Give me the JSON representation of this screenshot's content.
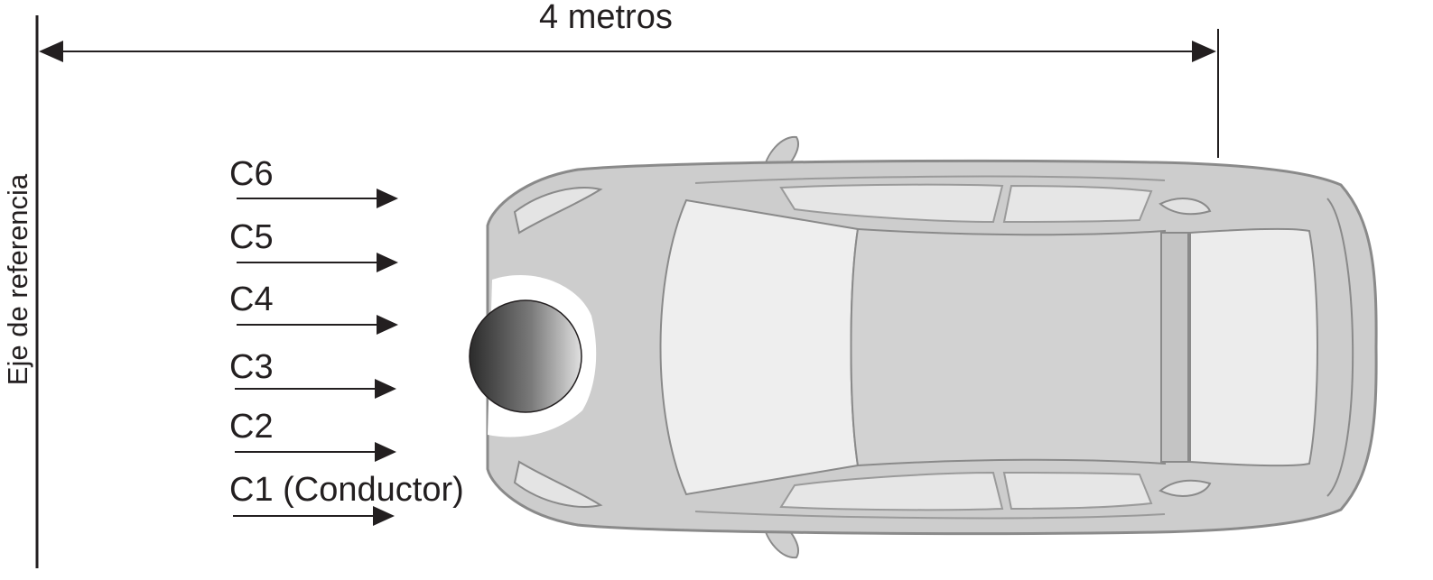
{
  "dimension": {
    "label": "4 metros"
  },
  "axis": {
    "label": "Eje de referencia"
  },
  "cameras": [
    {
      "label": "C6"
    },
    {
      "label": "C5"
    },
    {
      "label": "C4"
    },
    {
      "label": "C3"
    },
    {
      "label": "C2"
    },
    {
      "label": "C1 (Conductor)"
    }
  ],
  "colors": {
    "line": "#231f20",
    "car_body": "#c9c9c9",
    "car_outline": "#8a8a8a",
    "glass": "#eeeeee"
  }
}
